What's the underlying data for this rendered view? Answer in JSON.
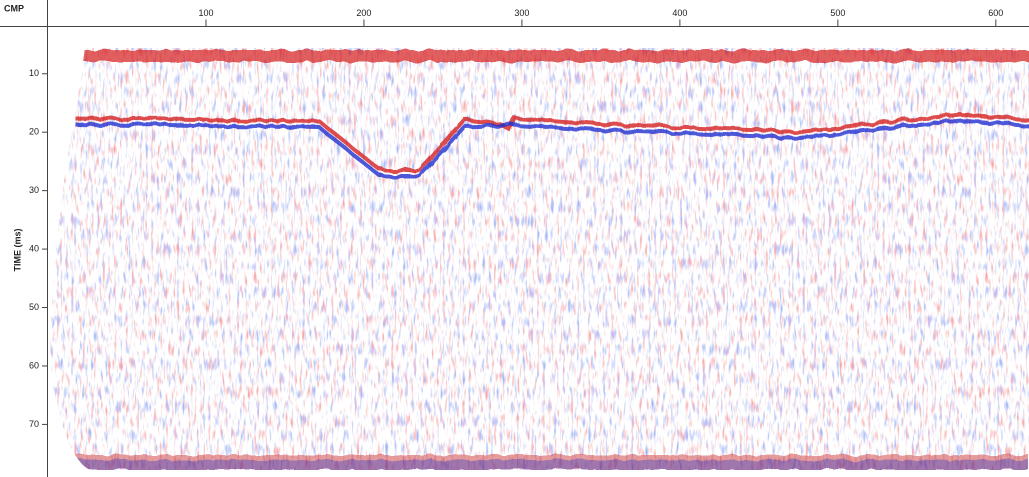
{
  "chart_data": {
    "type": "seismic",
    "x_label": "CMP",
    "y_label": "TIME (ms)",
    "x_axis_position": "top",
    "y_inverted": true,
    "xlim": [
      0,
      621
    ],
    "xticks": [
      100,
      200,
      300,
      400,
      500,
      600
    ],
    "ylim": [
      2,
      79
    ],
    "yticks": [
      10,
      20,
      30,
      40,
      50,
      60,
      70
    ]
  }
}
